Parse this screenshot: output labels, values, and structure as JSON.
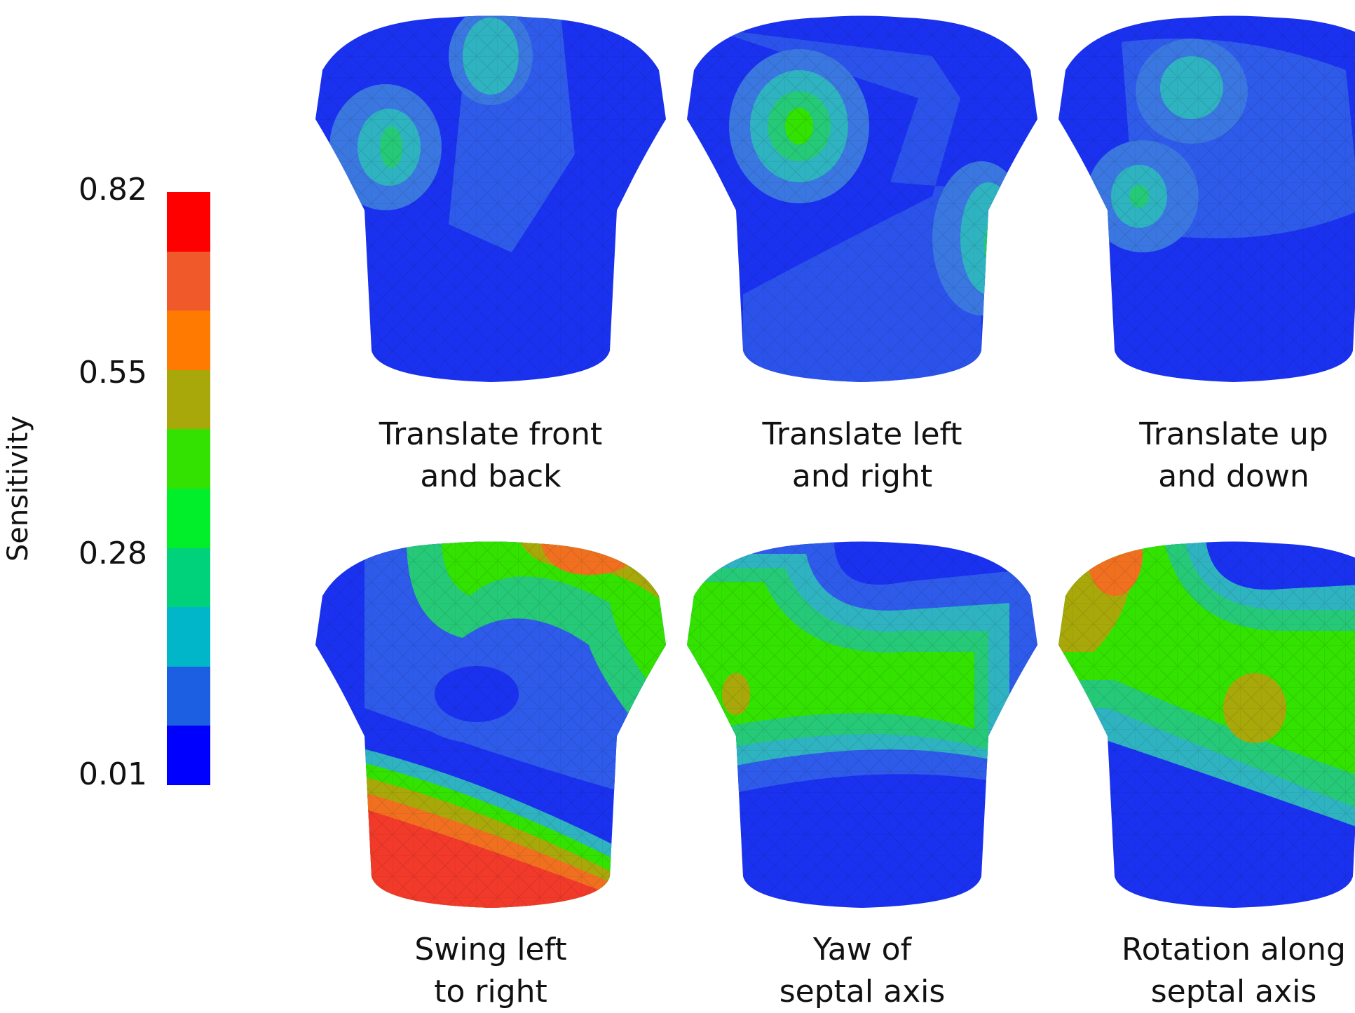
{
  "colorbar": {
    "axis_title": "Sensitivity",
    "ticks": [
      "0.82",
      "0.55",
      "0.28",
      "0.01"
    ],
    "colors": [
      "#ff0000",
      "#f05a2a",
      "#ff7a00",
      "#a9a80a",
      "#33e200",
      "#00ef2a",
      "#00d27c",
      "#00b6c8",
      "#1c5fe3",
      "#0000ff"
    ]
  },
  "panels": [
    {
      "line1": "Translate front",
      "line2": "and back"
    },
    {
      "line1": "Translate left",
      "line2": "and right"
    },
    {
      "line1": "Translate up",
      "line2": "and down"
    },
    {
      "line1": "Swing left",
      "line2": "to right"
    },
    {
      "line1": "Yaw of",
      "line2": "septal axis"
    },
    {
      "line1": "Rotation along",
      "line2": "septal axis"
    }
  ]
}
